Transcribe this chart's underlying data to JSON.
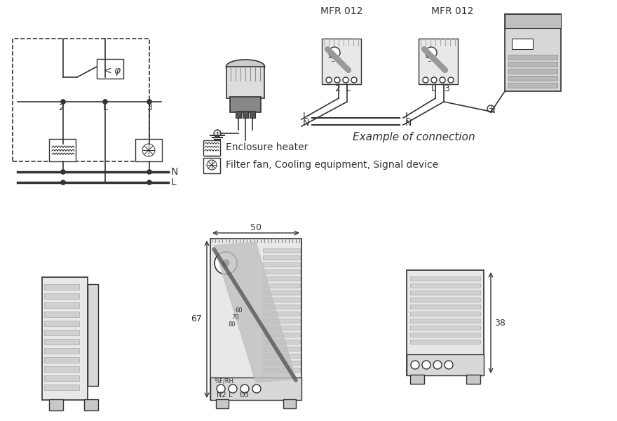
{
  "bg_color": "#ffffff",
  "line_color": "#333333",
  "gray_light": "#cccccc",
  "gray_mid": "#aaaaaa",
  "gray_dark": "#888888",
  "title1": "MFR 012",
  "title2": "MFR 012",
  "legend1": "Enclosure heater",
  "legend2": "Filter fan, Cooling equipment, Signal device",
  "example_text": "Example of connection",
  "dim_50": "50",
  "dim_67": "67",
  "dim_38": "38",
  "connector_labels": [
    "N2",
    "L",
    "Θ3"
  ],
  "bottom_labels": [
    "2",
    "L"
  ]
}
